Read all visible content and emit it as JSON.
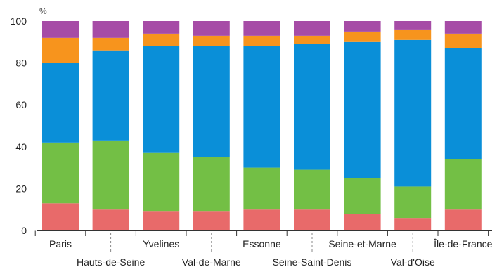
{
  "chart_data": {
    "type": "bar",
    "stacked": true,
    "normalized_percent": true,
    "y_unit_label": "%",
    "categories": [
      "Paris",
      "Hauts-de-Seine",
      "Yvelines",
      "Val-de-Marne",
      "Essonne",
      "Seine-Saint-Denis",
      "Seine-et-Marne",
      "Val-d'Oise",
      "Île-de-France"
    ],
    "series": [
      {
        "color": "#e86a6a",
        "values": [
          13,
          10,
          9,
          9,
          10,
          10,
          8,
          6,
          10
        ]
      },
      {
        "color": "#73bf45",
        "values": [
          29,
          33,
          28,
          26,
          20,
          19,
          17,
          15,
          24
        ]
      },
      {
        "color": "#0a8fd8",
        "values": [
          38,
          43,
          51,
          53,
          58,
          60,
          65,
          70,
          53
        ]
      },
      {
        "color": "#f7941d",
        "values": [
          12,
          6,
          6,
          5,
          5,
          4,
          5,
          5,
          7
        ]
      },
      {
        "color": "#a64ca6",
        "values": [
          8,
          8,
          6,
          7,
          7,
          7,
          5,
          4,
          6
        ]
      }
    ],
    "ylim": [
      0,
      100
    ],
    "yticks": [
      0,
      20,
      40,
      60,
      80,
      100
    ],
    "grid": false,
    "legend": "none",
    "title": "",
    "xlabel": "",
    "ylabel": ""
  }
}
